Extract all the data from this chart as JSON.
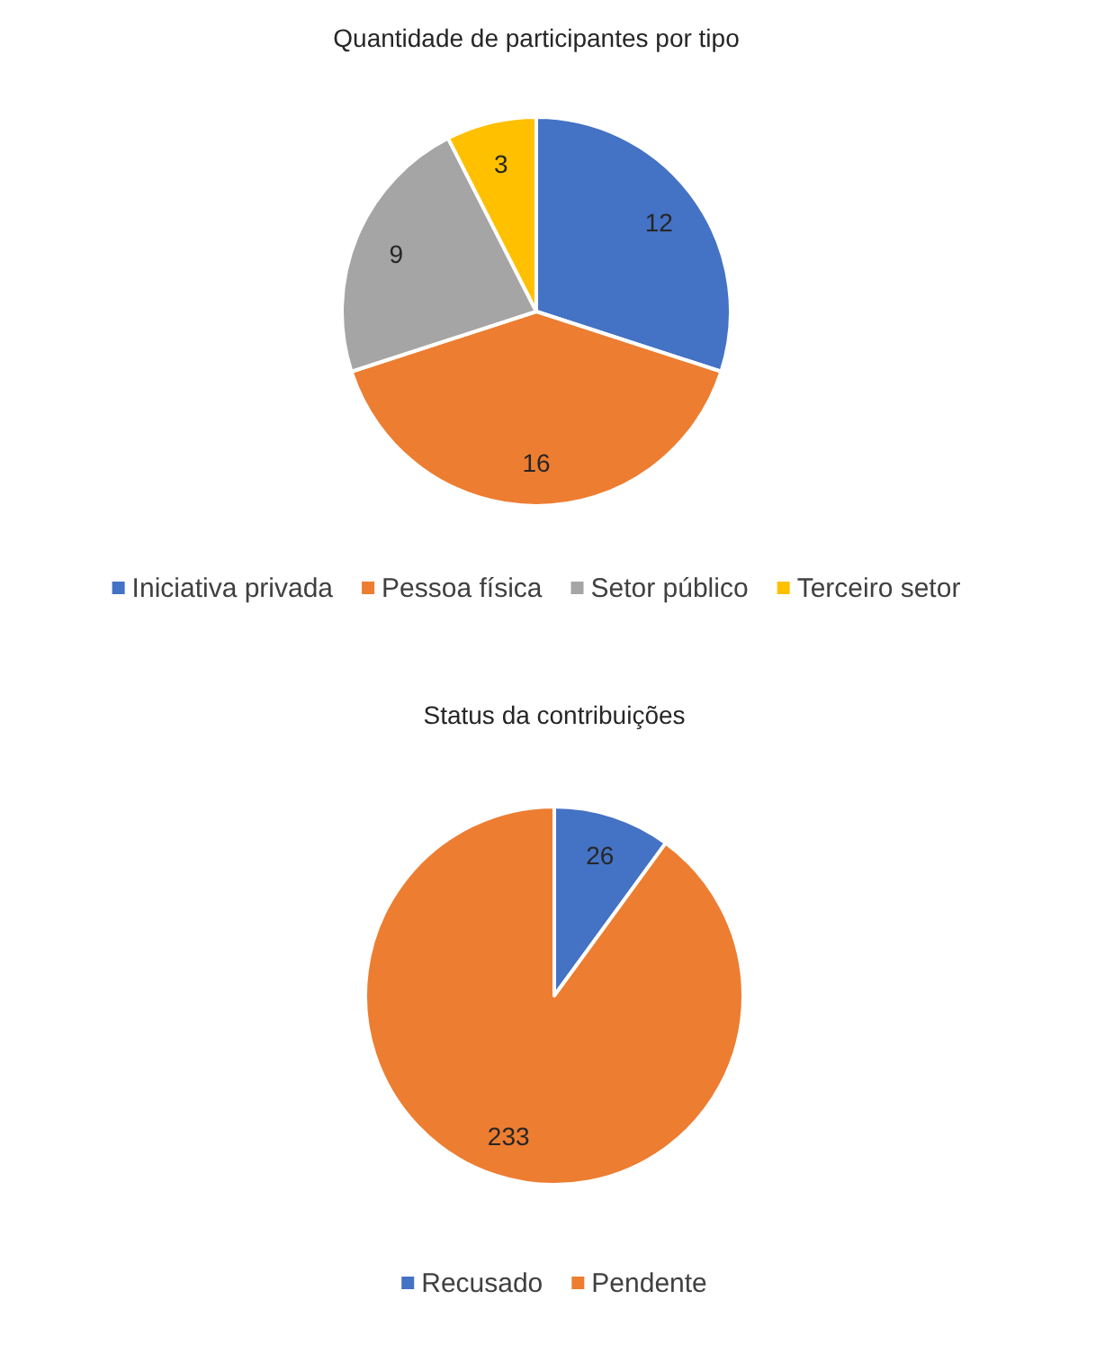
{
  "chart_data": [
    {
      "type": "pie",
      "title": "Quantidade de participantes por tipo",
      "categories": [
        "Iniciativa privada",
        "Pessoa física",
        "Setor público",
        "Terceiro setor"
      ],
      "values": [
        12,
        16,
        9,
        3
      ],
      "colors": [
        "#4472c4",
        "#ed7d31",
        "#a5a5a5",
        "#ffc000"
      ],
      "data_labels": true,
      "legend": "bottom"
    },
    {
      "type": "pie",
      "title": "Status da contribuições",
      "categories": [
        "Recusado",
        "Pendente"
      ],
      "values": [
        26,
        233
      ],
      "colors": [
        "#4472c4",
        "#ed7d31"
      ],
      "data_labels": true,
      "legend": "bottom"
    }
  ]
}
